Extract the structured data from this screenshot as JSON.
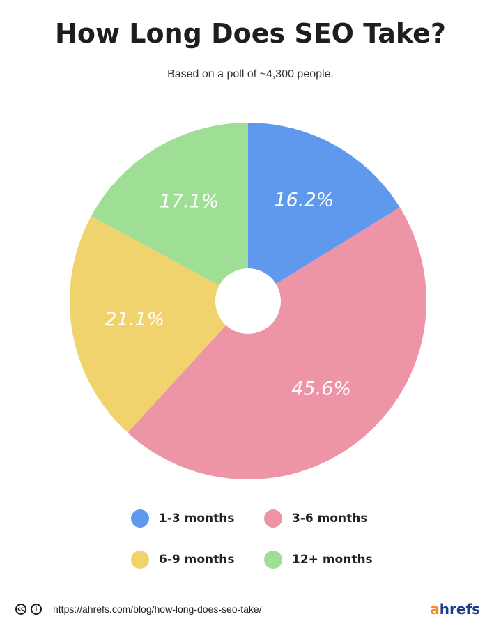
{
  "title": "How Long Does SEO Take?",
  "subtitle": "Based on a poll of ~4,300 people.",
  "chart_data": {
    "type": "pie",
    "title": "How Long Does SEO Take?",
    "subtitle": "Based on a poll of ~4,300 people.",
    "legend_position": "bottom",
    "slices": [
      {
        "label": "1-3 months",
        "value": 16.2,
        "display": "16.2%",
        "color": "#5f99ee"
      },
      {
        "label": "3-6 months",
        "value": 45.6,
        "display": "45.6%",
        "color": "#ee94a7"
      },
      {
        "label": "6-9 months",
        "value": 21.1,
        "display": "21.1%",
        "color": "#f0d36d"
      },
      {
        "label": "12+ months",
        "value": 17.1,
        "display": "17.1%",
        "color": "#9fdf95"
      }
    ]
  },
  "legend": {
    "item1": "1-3 months",
    "item2": "3-6 months",
    "item3": "6-9 months",
    "item4": "12+ months"
  },
  "footer": {
    "url": "https://ahrefs.com/blog/how-long-does-seo-take/",
    "license_icons": [
      "creative-commons-icon",
      "attribution-icon"
    ],
    "logo_a": "a",
    "logo_rest": "hrefs"
  }
}
